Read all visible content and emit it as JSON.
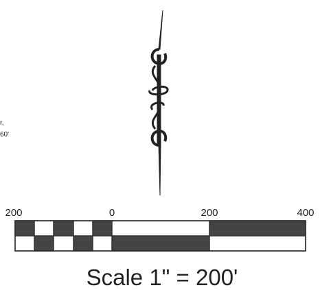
{
  "fragments": [
    "r,",
    "60'"
  ],
  "scale_bar": {
    "labels": [
      "200",
      "0",
      "200",
      "400"
    ]
  },
  "title": "Scale 1\" = 200'"
}
